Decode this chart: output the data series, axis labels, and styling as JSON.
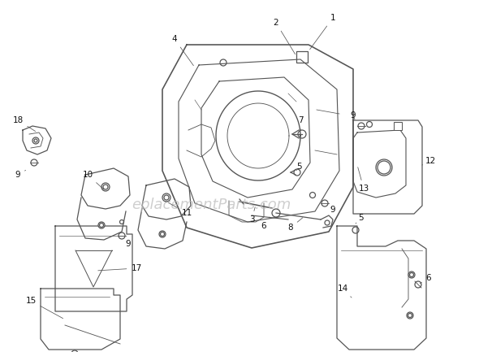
{
  "background_color": "#ffffff",
  "watermark": "eplacementParts.com",
  "watermark_color": "#bbbbbb",
  "watermark_fontsize": 13,
  "line_color": "#555555",
  "label_fontsize": 7.5,
  "label_color": "#111111",
  "lw": 0.9
}
